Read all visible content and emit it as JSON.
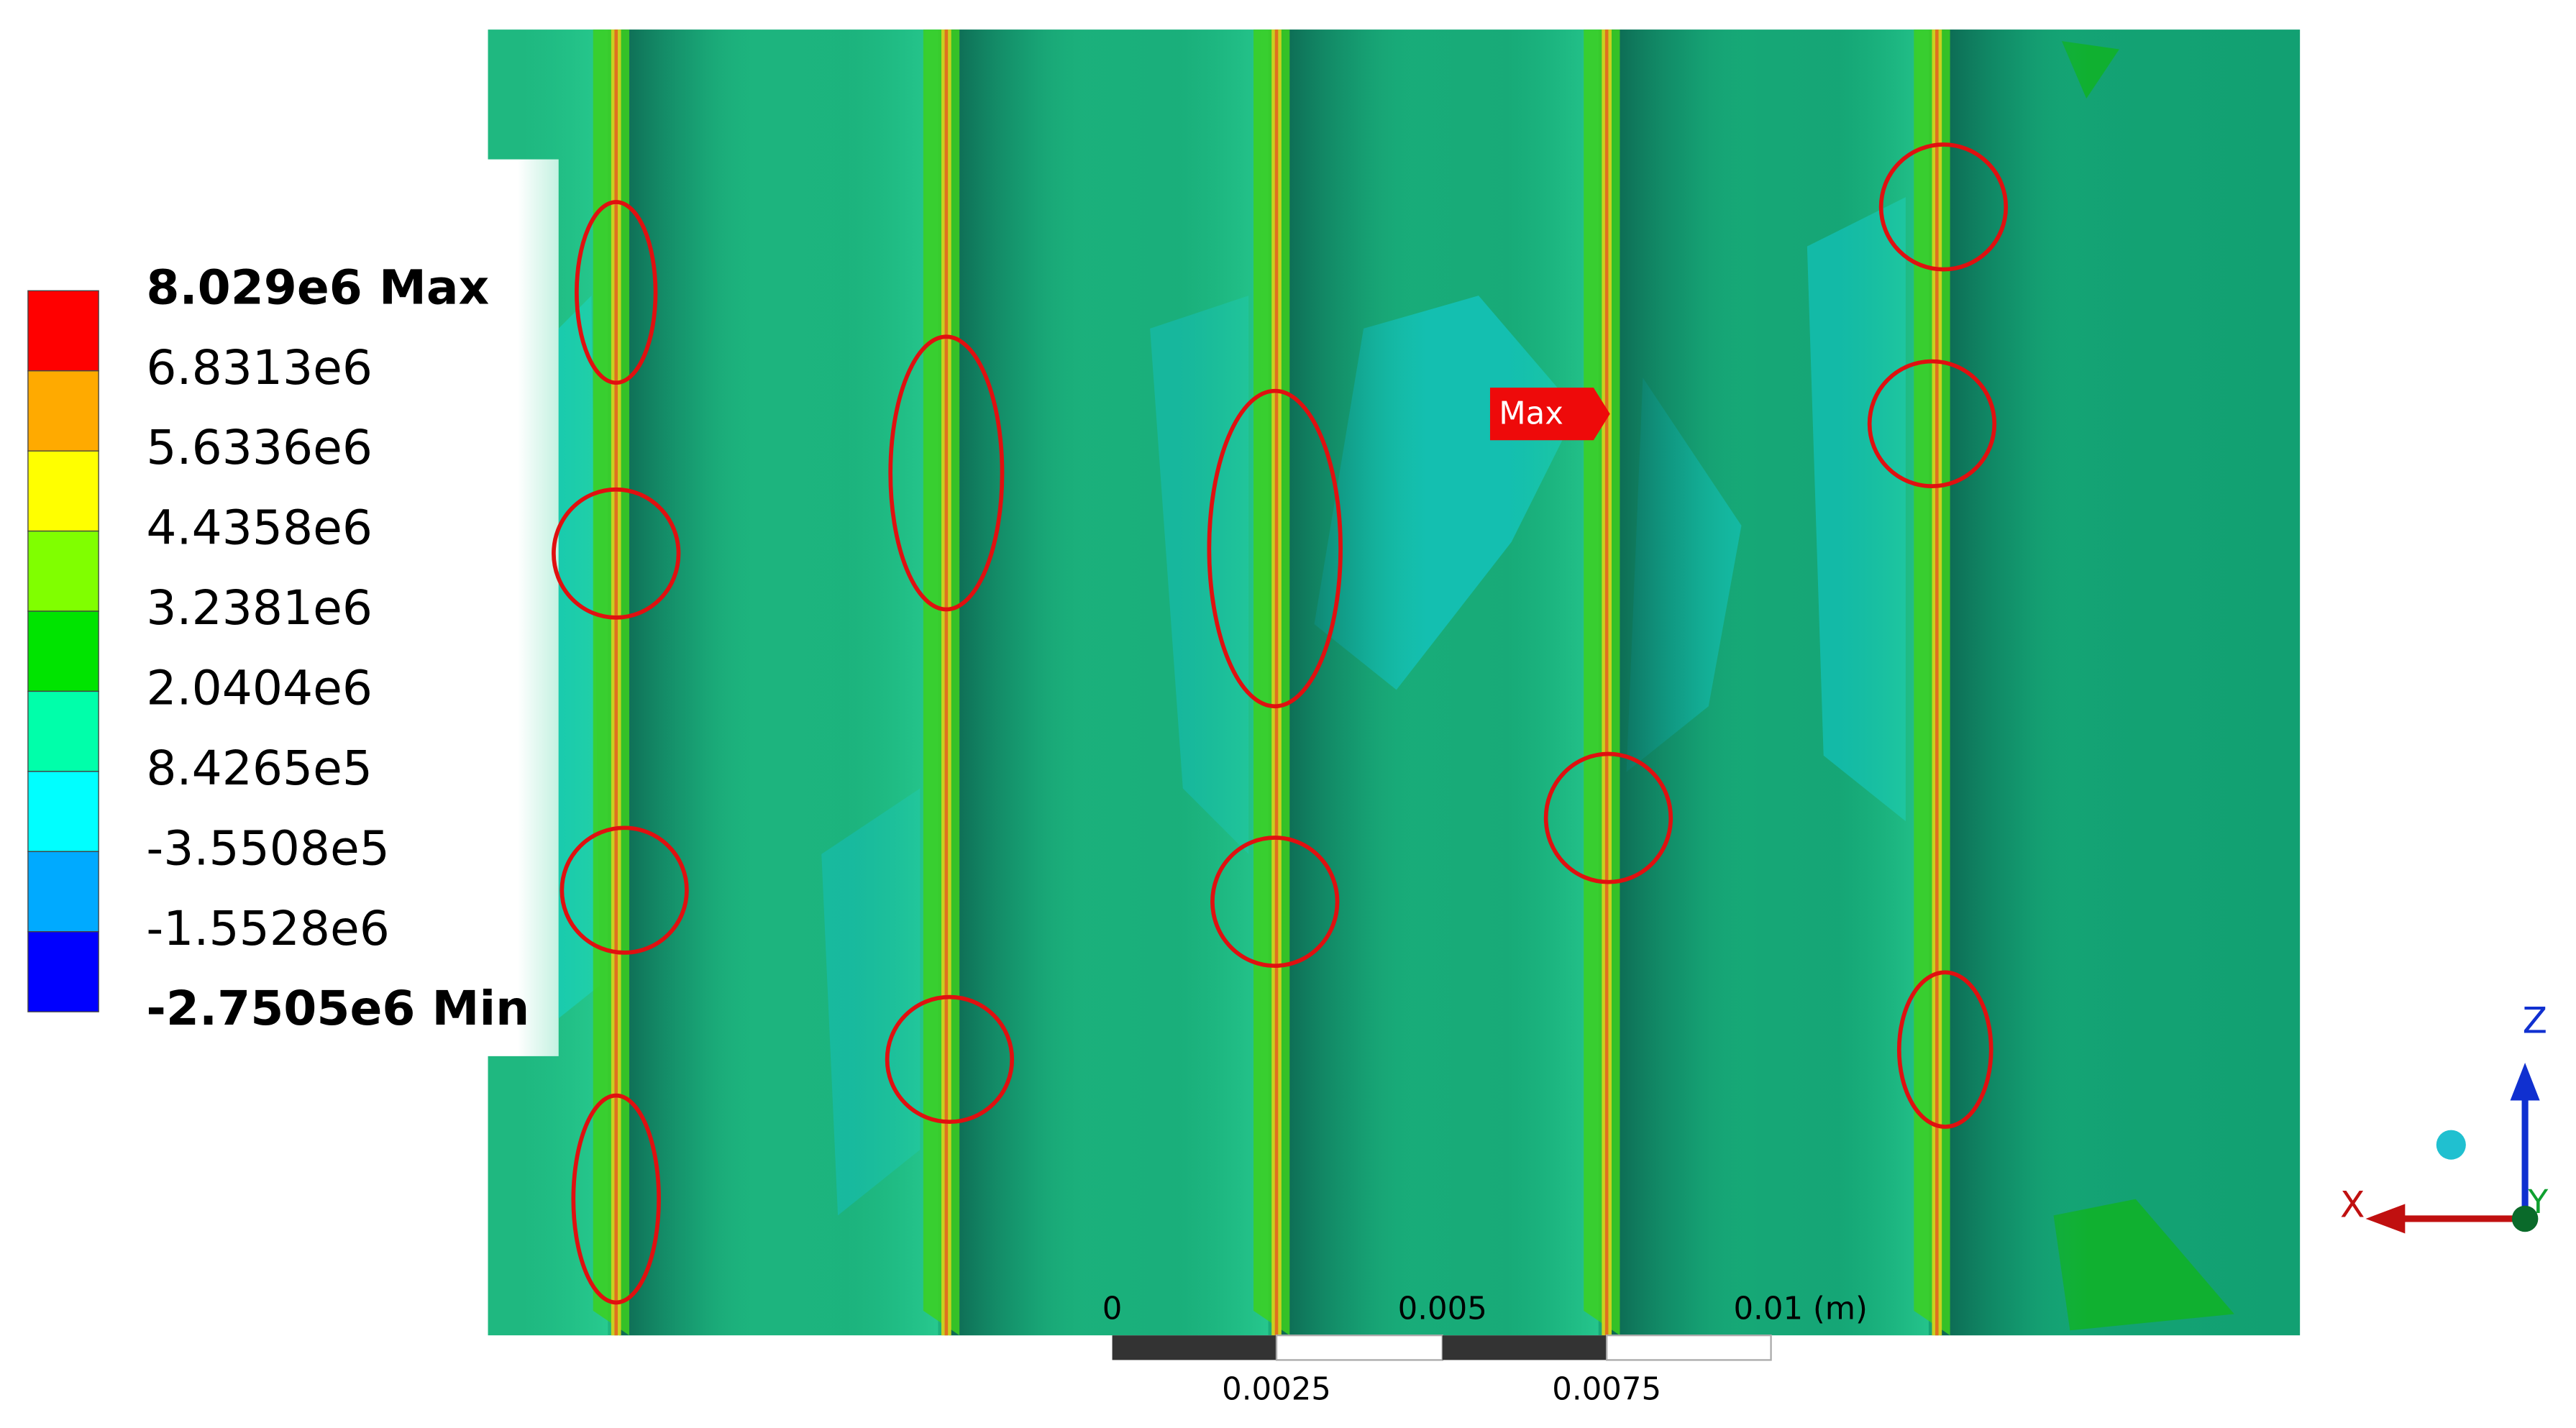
{
  "legend": {
    "labels": [
      "8.029e6 Max",
      "6.8313e6",
      "5.6336e6",
      "4.4358e6",
      "3.2381e6",
      "2.0404e6",
      "8.4265e5",
      "-3.5508e5",
      "-1.5528e6",
      "-2.7505e6 Min"
    ],
    "colors": [
      "#ff0000",
      "#ffaa00",
      "#ffff00",
      "#80ff00",
      "#00e400",
      "#00ffaa",
      "#00ffff",
      "#00aaff",
      "#0000ff"
    ]
  },
  "max_tag": "Max",
  "scale_bar": {
    "top_labels": [
      "0",
      "0.005",
      "0.01 (m)"
    ],
    "bottom_labels": [
      "0.0025",
      "0.0075"
    ]
  },
  "triad": {
    "x": "X",
    "y": "Y",
    "z": "Z"
  }
}
